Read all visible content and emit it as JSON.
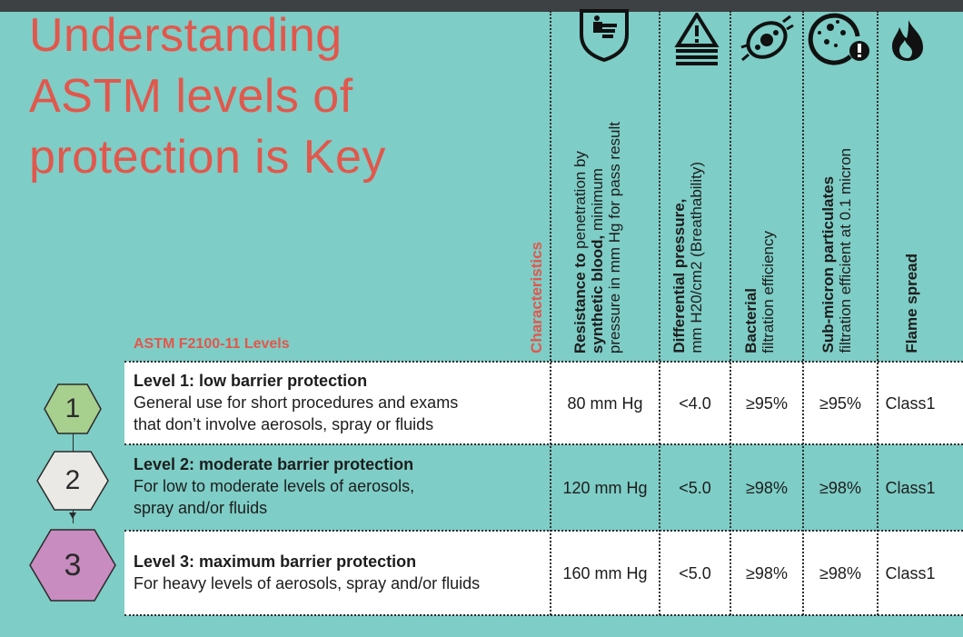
{
  "title": [
    "Understanding",
    "ASTM levels of",
    "protection is Key"
  ],
  "levels_header": "ASTM F2100-11 Levels",
  "characteristics_header": "Characteristics",
  "columns": [
    {
      "icon": "hand-shield-icon",
      "bold": "Resistance to",
      "rest": " penetration by",
      "bold2": "synthetic blood,",
      "rest2": " minimum",
      "line3": "pressure in mm Hg for pass result"
    },
    {
      "icon": "warning-pressure-icon",
      "bold": "Differential pressure,",
      "line2": "mm H20/cm2 (Breathability)"
    },
    {
      "icon": "bacteria-icon",
      "bold": "Bacterial",
      "line2": "filtration efficiency"
    },
    {
      "icon": "particulates-icon",
      "bold": "Sub-micron particulates",
      "line2": "filtration efficient at 0.1 micron"
    },
    {
      "icon": "flame-icon",
      "bold": "Flame spread"
    }
  ],
  "rows": [
    {
      "number": "1",
      "hex_color": "#a7cf8e",
      "title": "Level 1: low barrier protection",
      "desc": [
        "General use for short procedures and exams",
        "that don’t involve aerosols, spray or fluids"
      ],
      "values": [
        "80 mm Hg",
        "<4.0",
        "≥95%",
        "≥95%",
        "Class1"
      ]
    },
    {
      "number": "2",
      "hex_color": "#ebe9e6",
      "title": "Level 2: moderate barrier protection",
      "desc": [
        "For low to moderate levels of aerosols,",
        "spray and/or fluids"
      ],
      "values": [
        "120 mm Hg",
        "<5.0",
        "≥98%",
        "≥98%",
        "Class1"
      ]
    },
    {
      "number": "3",
      "hex_color": "#c88cc0",
      "title": "Level 3: maximum barrier protection",
      "desc": [
        "For heavy levels of aerosols, spray and/or fluids"
      ],
      "values": [
        "160 mm Hg",
        "<5.0",
        "≥98%",
        "≥98%",
        "Class1"
      ]
    }
  ],
  "colors": {
    "background": "#7ecdc6",
    "accent": "#e2574c",
    "row_white": "#ffffff"
  }
}
